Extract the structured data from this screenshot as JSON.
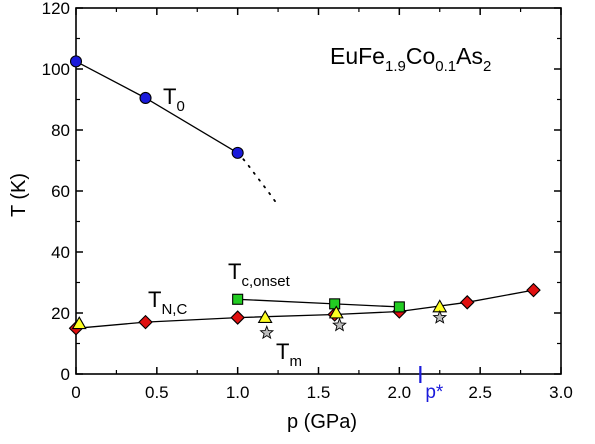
{
  "chart_data": {
    "type": "scatter",
    "title": "",
    "compound": {
      "base": "EuFe",
      "sub1": "1.9",
      "mid": "Co",
      "sub2": "0.1",
      "end": "As",
      "sub3": "2"
    },
    "xlabel": "p (GPa)",
    "ylabel": "T (K)",
    "xlim": [
      0,
      3.0
    ],
    "ylim": [
      0,
      120
    ],
    "xticks": [
      "0",
      "0.5",
      "1.0",
      "1.5",
      "2.0",
      "2.5",
      "3.0"
    ],
    "yticks": [
      "0",
      "20",
      "40",
      "60",
      "80",
      "100",
      "120"
    ],
    "series": [
      {
        "id": "T0",
        "label": "T",
        "label_sub": "0",
        "marker": "circle",
        "color": "#1a1adb",
        "connected": true,
        "x": [
          0.0,
          0.43,
          1.0
        ],
        "y": [
          102.5,
          90.5,
          72.5
        ]
      },
      {
        "id": "T0_extrap",
        "marker": "none",
        "color": "#000000",
        "dotted": true,
        "x": [
          1.0,
          1.05,
          1.1,
          1.15,
          1.2,
          1.24
        ],
        "y": [
          72.5,
          69.5,
          66.0,
          62.5,
          59.0,
          56.0
        ]
      },
      {
        "id": "TNC",
        "label": "T",
        "label_sub": "N,C",
        "marker": "diamond",
        "color": "#e01010",
        "connected": true,
        "x": [
          0.0,
          0.43,
          1.0,
          1.6,
          2.0,
          2.42,
          2.83
        ],
        "y": [
          15.0,
          17.0,
          18.5,
          19.5,
          20.5,
          23.5,
          27.5
        ]
      },
      {
        "id": "Tc_onset",
        "label": "T",
        "label_sub": "c,onset",
        "marker": "square",
        "color": "#22cc22",
        "connected": true,
        "x": [
          1.0,
          1.6,
          2.0
        ],
        "y": [
          24.5,
          23.0,
          22.0
        ]
      },
      {
        "id": "triangles",
        "marker": "triangle",
        "color": "#ffff22",
        "connected": false,
        "x": [
          0.02,
          1.17,
          1.61,
          2.25
        ],
        "y": [
          16.5,
          18.5,
          20.0,
          22.0
        ]
      },
      {
        "id": "Tm",
        "label": "T",
        "label_sub": "m",
        "marker": "star",
        "color": "#bdbdbd",
        "connected": false,
        "x": [
          1.18,
          1.63,
          2.25
        ],
        "y": [
          13.5,
          16.0,
          18.5
        ]
      }
    ],
    "annotations": {
      "pstar": {
        "text": "p*",
        "x": 2.13,
        "color": "#1a1adb"
      }
    }
  }
}
